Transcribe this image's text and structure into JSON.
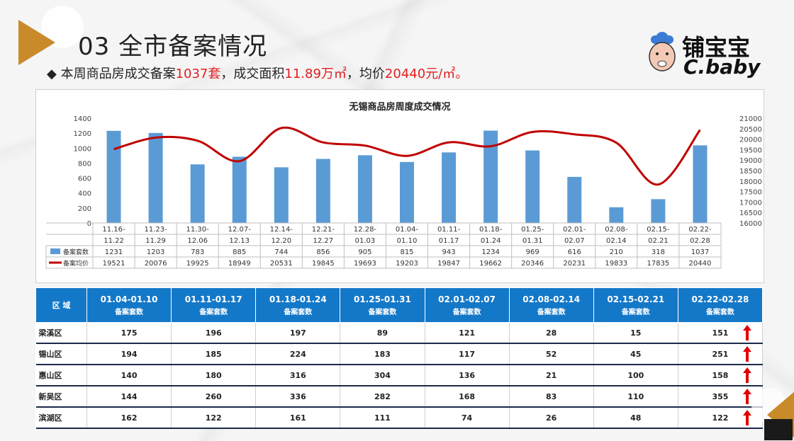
{
  "header": {
    "title": "03 全市备案情况",
    "summary_parts": [
      {
        "text": "◆ 本周商品房成交备案",
        "hl": false
      },
      {
        "text": "1037套",
        "hl": true
      },
      {
        "text": "，成交面积",
        "hl": false
      },
      {
        "text": "11.89万㎡",
        "hl": true
      },
      {
        "text": "，均价",
        "hl": false
      },
      {
        "text": "20440元/㎡。",
        "hl": true
      }
    ]
  },
  "logo": {
    "brand_cn": "铺宝宝",
    "brand_en": "C.baby"
  },
  "colors": {
    "bar": "#5b9bd5",
    "line": "#c00000",
    "table_header": "#1478c8",
    "highlight": "#e21e1e",
    "up_arrow": "#e00000"
  },
  "chart_data": {
    "type": "bar",
    "title": "无锡商品房周度成交情况",
    "categories": [
      "11.16-11.22",
      "11.23-11.29",
      "11.30-12.06",
      "12.07-12.13",
      "12.14-12.20",
      "12.21-12.27",
      "12.28-01.03",
      "01.04-01.10",
      "01.11-01.17",
      "01.18-01.24",
      "01.25-01.31",
      "02.01-02.07",
      "02.08-02.14",
      "02.15-02.21",
      "02.22-02.28"
    ],
    "series": [
      {
        "name": "备案套数",
        "type": "bar",
        "axis": "left",
        "values": [
          1231,
          1203,
          783,
          885,
          744,
          856,
          905,
          815,
          943,
          1234,
          969,
          616,
          210,
          318,
          1037
        ]
      },
      {
        "name": "备案均价",
        "type": "line",
        "axis": "right",
        "values": [
          19521,
          20076,
          19925,
          18949,
          20531,
          19845,
          19693,
          19203,
          19847,
          19662,
          20346,
          20231,
          19833,
          17835,
          20440
        ]
      }
    ],
    "ylim_left": [
      0,
      1400
    ],
    "yticks_left": [
      0,
      200,
      400,
      600,
      800,
      1000,
      1200,
      1400
    ],
    "ylim_right": [
      16000,
      21000
    ],
    "yticks_right": [
      16000,
      16500,
      17000,
      17500,
      18000,
      18500,
      19000,
      19500,
      20000,
      20500,
      21000
    ],
    "grid": false,
    "legend": "data-table-bottom"
  },
  "region_table": {
    "corner_label": "区 域",
    "columns": [
      {
        "week": "01.04-01.10",
        "metric": "备案套数"
      },
      {
        "week": "01.11-01.17",
        "metric": "备案套数"
      },
      {
        "week": "01.18-01.24",
        "metric": "备案套数"
      },
      {
        "week": "01.25-01.31",
        "metric": "备案套数"
      },
      {
        "week": "02.01-02.07",
        "metric": "备案套数"
      },
      {
        "week": "02.08-02.14",
        "metric": "备案套数"
      },
      {
        "week": "02.15-02.21",
        "metric": "备案套数"
      },
      {
        "week": "02.22-02.28",
        "metric": "备案套数"
      }
    ],
    "rows": [
      {
        "region": "梁溪区",
        "values": [
          175,
          196,
          197,
          89,
          121,
          28,
          15,
          151
        ],
        "trend": "up"
      },
      {
        "region": "锡山区",
        "values": [
          194,
          185,
          224,
          183,
          117,
          52,
          45,
          251
        ],
        "trend": "up"
      },
      {
        "region": "惠山区",
        "values": [
          140,
          180,
          316,
          304,
          136,
          21,
          100,
          158
        ],
        "trend": "up"
      },
      {
        "region": "新吴区",
        "values": [
          144,
          260,
          336,
          282,
          168,
          83,
          110,
          355
        ],
        "trend": "up"
      },
      {
        "region": "滨湖区",
        "values": [
          162,
          122,
          161,
          111,
          74,
          26,
          48,
          122
        ],
        "trend": "up"
      }
    ]
  }
}
